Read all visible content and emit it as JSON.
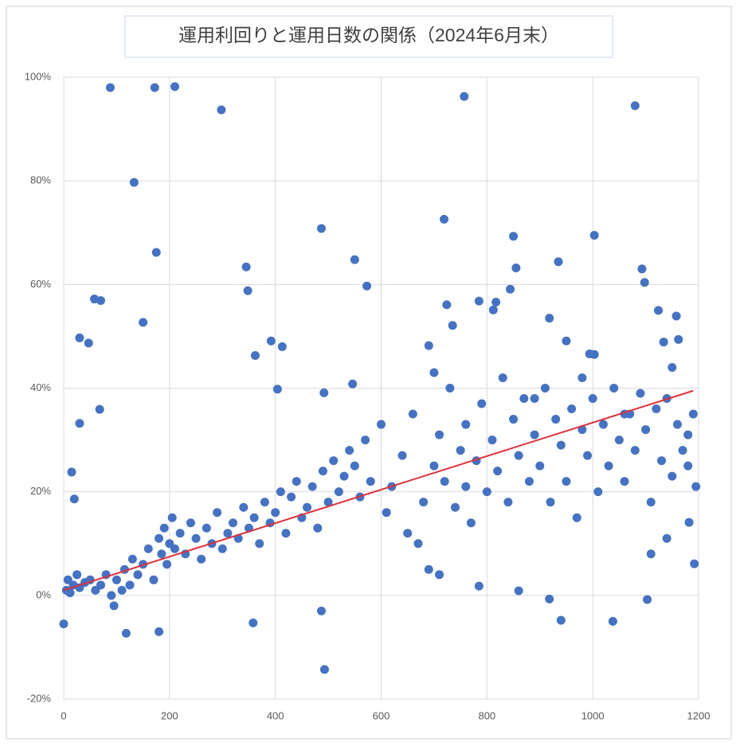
{
  "chart_data": {
    "type": "scatter",
    "title": "運用利回りと運用日数の関係（2024年6月末）",
    "xlim": [
      0,
      1200
    ],
    "xticks": [
      0,
      200,
      400,
      600,
      800,
      1000,
      1200
    ],
    "ylim": [
      -20,
      100
    ],
    "yticks": [
      {
        "value": -20,
        "label": "-20%"
      },
      {
        "value": 0,
        "label": "0%"
      },
      {
        "value": 20,
        "label": "20%"
      },
      {
        "value": 40,
        "label": "40%"
      },
      {
        "value": 60,
        "label": "60%"
      },
      {
        "value": 80,
        "label": "80%"
      },
      {
        "value": 100,
        "label": "100%"
      }
    ],
    "grid": true,
    "series": [
      {
        "color": "#4472c4",
        "x": [
          88,
          172,
          210,
          298,
          757,
          1080,
          133,
          175,
          150,
          58,
          70,
          30,
          47,
          68,
          30,
          15,
          20,
          345,
          348,
          487,
          550,
          573,
          362,
          392,
          413,
          404,
          492,
          546,
          719,
          724,
          735,
          785,
          812,
          817,
          844,
          850,
          855,
          935,
          1003,
          1093,
          1098,
          1124,
          1158,
          918,
          950,
          994,
          1003,
          1162,
          1134,
          487,
          493,
          358,
          180,
          118,
          918,
          940,
          1038,
          1103,
          0,
          1192,
          1182,
          860,
          785,
          690,
          700,
          890,
          5,
          8,
          12,
          18,
          25,
          30,
          40,
          50,
          60,
          70,
          80,
          90,
          95,
          100,
          110,
          115,
          125,
          130,
          140,
          150,
          160,
          170,
          180,
          185,
          190,
          195,
          200,
          205,
          210,
          220,
          230,
          240,
          250,
          260,
          270,
          280,
          290,
          300,
          310,
          320,
          330,
          340,
          350,
          360,
          370,
          380,
          390,
          400,
          410,
          420,
          430,
          440,
          450,
          460,
          470,
          480,
          490,
          500,
          510,
          520,
          530,
          540,
          550,
          560,
          570,
          580,
          600,
          610,
          620,
          640,
          650,
          660,
          680,
          700,
          710,
          720,
          730,
          740,
          750,
          760,
          770,
          780,
          790,
          800,
          810,
          820,
          830,
          840,
          850,
          860,
          870,
          880,
          890,
          900,
          910,
          920,
          930,
          940,
          950,
          960,
          970,
          980,
          990,
          1000,
          1010,
          1020,
          1030,
          1040,
          1050,
          1060,
          1070,
          1080,
          1090,
          1100,
          1110,
          1120,
          1130,
          1140,
          1150,
          1160,
          1170,
          1180,
          1190,
          1195,
          1150,
          1060,
          980,
          760,
          690,
          710,
          1110,
          1140,
          1180,
          670
        ],
        "values": [
          98,
          98,
          98.2,
          93.7,
          96.3,
          94.5,
          79.7,
          66.2,
          52.7,
          57.2,
          56.9,
          49.7,
          48.7,
          35.9,
          33.2,
          23.8,
          18.6,
          63.4,
          58.8,
          70.8,
          64.8,
          59.7,
          46.3,
          49.1,
          48,
          39.8,
          39.1,
          40.8,
          72.6,
          56.1,
          52.1,
          56.8,
          55.1,
          56.6,
          59.1,
          69.3,
          63.2,
          64.4,
          69.5,
          63,
          60.4,
          55,
          53.9,
          53.5,
          49.1,
          46.6,
          46.5,
          49.4,
          48.9,
          -3,
          -14.3,
          -5.3,
          -7,
          -7.3,
          -0.7,
          -4.8,
          -5,
          -0.8,
          -5.5,
          6.1,
          14.1,
          0.9,
          1.8,
          48.2,
          43,
          38,
          1,
          3,
          0.5,
          2,
          4,
          1.5,
          2.5,
          3,
          1,
          2,
          4,
          0,
          -2,
          3,
          1,
          5,
          2,
          7,
          4,
          6,
          9,
          3,
          11,
          8,
          13,
          6,
          10,
          15,
          9,
          12,
          8,
          14,
          11,
          7,
          13,
          10,
          16,
          9,
          12,
          14,
          11,
          17,
          13,
          15,
          10,
          18,
          14,
          16,
          20,
          12,
          19,
          22,
          15,
          17,
          21,
          13,
          24,
          18,
          26,
          20,
          23,
          28,
          25,
          19,
          30,
          22,
          33,
          16,
          21,
          27,
          12,
          35,
          18,
          25,
          31,
          22,
          40,
          17,
          28,
          33,
          14,
          26,
          37,
          20,
          30,
          24,
          42,
          18,
          34,
          27,
          38,
          22,
          31,
          25,
          40,
          18,
          34,
          29,
          22,
          36,
          15,
          32,
          27,
          38,
          20,
          33,
          25,
          40,
          30,
          22,
          35,
          28,
          39,
          32,
          18,
          36,
          26,
          38,
          23,
          33,
          28,
          25,
          35,
          21,
          44,
          35,
          42,
          21,
          5,
          4,
          8,
          11,
          31,
          10
        ]
      }
    ],
    "trendline": {
      "color": "#e0303a",
      "x": [
        0,
        1190
      ],
      "values": [
        1,
        39.5
      ]
    }
  }
}
